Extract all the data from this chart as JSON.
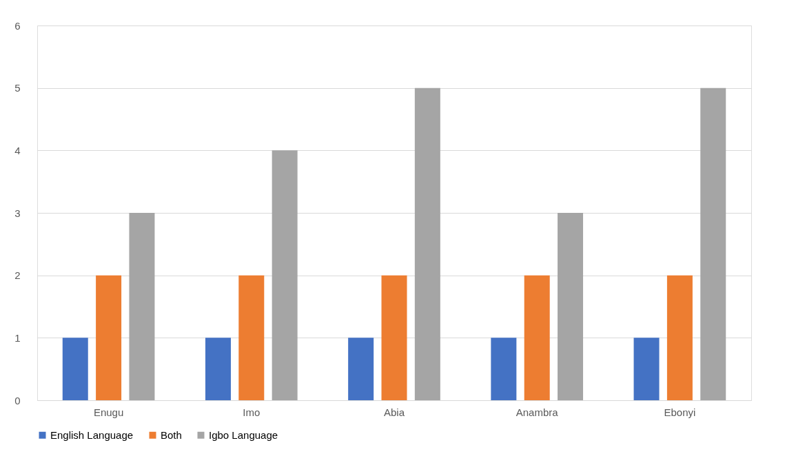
{
  "chart_data": {
    "type": "bar",
    "categories": [
      "Enugu",
      "Imo",
      "Abia",
      "Anambra",
      "Ebonyi"
    ],
    "series": [
      {
        "name": "English Language",
        "color": "#4472c4",
        "values": [
          1,
          1,
          1,
          1,
          1
        ]
      },
      {
        "name": "Both",
        "color": "#ed7d31",
        "values": [
          2,
          2,
          2,
          2,
          2
        ]
      },
      {
        "name": "Igbo Language",
        "color": "#a5a5a5",
        "values": [
          3,
          4,
          5,
          3,
          5
        ]
      }
    ],
    "ylim": [
      0,
      6
    ],
    "yticks": [
      0,
      1,
      2,
      3,
      4,
      5,
      6
    ],
    "grid": "y",
    "legend": "bottom"
  }
}
